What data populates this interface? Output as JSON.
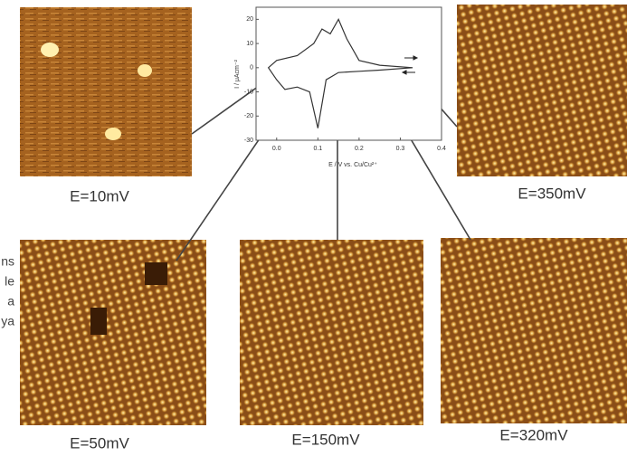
{
  "chart_data": {
    "type": "line",
    "x_label": "E / V  vs. Cu/Cu²⁺",
    "y_label": "I / μAcm⁻²",
    "x": [
      0.33,
      0.25,
      0.2,
      0.15,
      0.12,
      0.1,
      0.08,
      0.05,
      0.02,
      0.0,
      -0.02,
      0.0,
      0.05,
      0.09,
      0.11,
      0.13,
      0.15,
      0.17,
      0.2,
      0.25,
      0.33
    ],
    "values": [
      0,
      -1,
      -1.5,
      -2,
      -5,
      -25,
      -10,
      -8,
      -9,
      -5,
      0,
      3,
      5,
      10,
      16,
      14,
      20,
      12,
      3,
      1,
      0
    ],
    "color": "#333333",
    "xlim": [
      -0.05,
      0.4
    ],
    "ylim": [
      -30,
      25
    ],
    "xticks": [
      {
        "value": 0,
        "label": "0.0"
      },
      0.1,
      0.2,
      0.3,
      0.4
    ],
    "yticks": [
      -30,
      -20,
      -10,
      0,
      10,
      20
    ]
  },
  "panels": [
    "E=10mV",
    "E=350mV",
    "E=50mV",
    "E=150mV",
    "E=320mV"
  ],
  "side_text": [
    "ns",
    "le",
    "a",
    "ya"
  ]
}
